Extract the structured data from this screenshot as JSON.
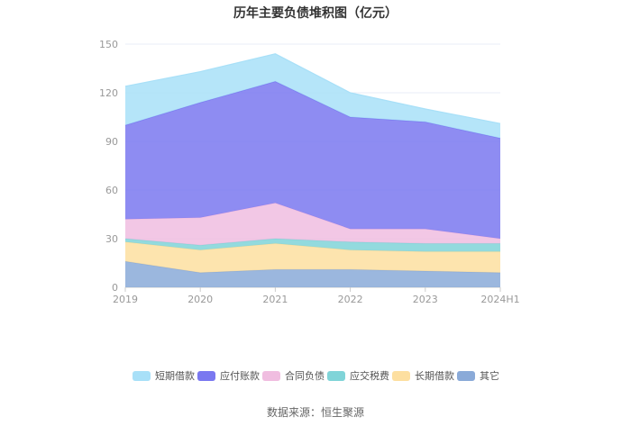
{
  "chart_data": {
    "type": "area",
    "stacked": true,
    "title": "历年主要负债堆积图（亿元）",
    "categories": [
      "2019",
      "2020",
      "2021",
      "2022",
      "2023",
      "2024H1"
    ],
    "ylim": [
      0,
      150
    ],
    "yticks": [
      "0",
      "30",
      "60",
      "90",
      "120",
      "150"
    ],
    "grid": true,
    "legend_position": "bottom",
    "series": [
      {
        "name": "其它",
        "color": "#8aaad8",
        "values": [
          16,
          9,
          11,
          11,
          10,
          9
        ]
      },
      {
        "name": "长期借款",
        "color": "#fddfa0",
        "values": [
          12,
          14,
          16,
          12,
          12,
          13
        ]
      },
      {
        "name": "应交税费",
        "color": "#80d4d8",
        "values": [
          2,
          3,
          3,
          5,
          5,
          5
        ]
      },
      {
        "name": "合同负债",
        "color": "#f0bde0",
        "values": [
          12,
          17,
          22,
          8,
          9,
          3
        ]
      },
      {
        "name": "应付账款",
        "color": "#7a78f0",
        "values": [
          58,
          71,
          75,
          69,
          66,
          62
        ]
      },
      {
        "name": "短期借款",
        "color": "#a8e0f8",
        "values": [
          24,
          19,
          17,
          15,
          8,
          9
        ]
      }
    ],
    "legend_order": [
      "短期借款",
      "应付账款",
      "合同负债",
      "应交税费",
      "长期借款",
      "其它"
    ]
  },
  "footer": {
    "source": "数据来源：恒生聚源"
  }
}
